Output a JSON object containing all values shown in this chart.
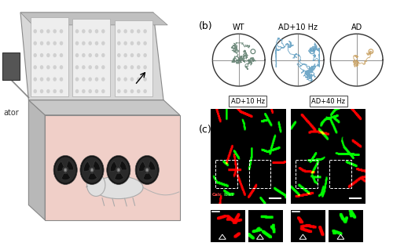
{
  "figure_width": 5.0,
  "figure_height": 3.19,
  "dpi": 100,
  "background_color": "#ffffff",
  "panel_b_label": "(b)",
  "panel_c_label": "(c)",
  "panel_b_titles": [
    "WT",
    "AD+10 Hz",
    "AD"
  ],
  "panel_b_colors": [
    "#5a7a6a",
    "#5a9abf",
    "#c8a060"
  ],
  "panel_c_titles": [
    "AD+10 Hz",
    "AD+40 Hz"
  ],
  "label_fontsize": 9,
  "title_fontsize": 7,
  "ator_label": "ator",
  "box_face_color": "#e8c8c0",
  "box_side_color": "#c0c0c0",
  "box_top_color": "#d8d8d8",
  "lid_color": "#e8e8e8",
  "fan_dark": "#1a1a1a",
  "fan_mid": "#333333",
  "ctrl_color": "#555555",
  "wire_color": "#888888"
}
